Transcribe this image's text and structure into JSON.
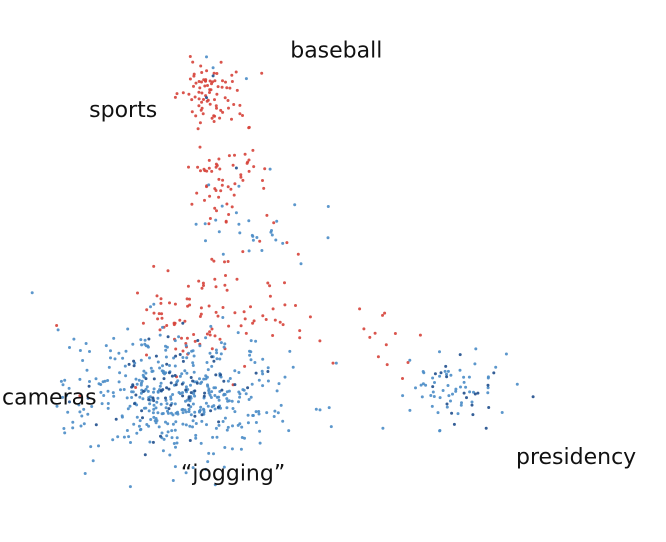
{
  "chart_data": {
    "type": "scatter",
    "title": "",
    "xlabel": "",
    "ylabel": "",
    "grid": false,
    "legend": "none",
    "axes_visible": false,
    "xlim": [
      0,
      100
    ],
    "ylim": [
      0,
      100
    ],
    "colors": {
      "red": "#d6433a",
      "blue": "#4a8cc7",
      "dark_blue": "#1f4e8c"
    },
    "labels": [
      {
        "id": "baseball",
        "text": "baseball",
        "x": 50.5,
        "y": 90.5
      },
      {
        "id": "sports",
        "text": "sports",
        "x": 18.5,
        "y": 79.5
      },
      {
        "id": "cameras",
        "text": "cameras",
        "x": 7.4,
        "y": 26.5
      },
      {
        "id": "jogging",
        "text": "“jogging”",
        "x": 35.0,
        "y": 12.5
      },
      {
        "id": "presidency",
        "text": "presidency",
        "x": 86.5,
        "y": 15.5
      }
    ],
    "series": [
      {
        "color": "red",
        "clusters": [
          {
            "cx": 31.5,
            "cy": 83.0,
            "sx": 2.2,
            "sy": 2.8,
            "n": 75
          },
          {
            "cx": 34.0,
            "cy": 68.0,
            "sx": 3.0,
            "sy": 6.5,
            "n": 70
          },
          {
            "cx": 32.0,
            "cy": 42.0,
            "sx": 6.0,
            "sy": 5.0,
            "n": 95
          },
          {
            "cx": 60.0,
            "cy": 38.0,
            "sx": 3.5,
            "sy": 3.5,
            "n": 12
          }
        ],
        "points": [
          [
            39.0,
            55.5
          ],
          [
            26.5,
            30.5
          ],
          [
            28.0,
            36.0
          ],
          [
            22.0,
            34.5
          ],
          [
            12.0,
            27.0
          ],
          [
            35.0,
            29.0
          ],
          [
            41.0,
            43.0
          ],
          [
            45.0,
            39.0
          ],
          [
            50.0,
            33.0
          ],
          [
            54.0,
            43.0
          ]
        ]
      },
      {
        "color": "blue",
        "clusters": [
          {
            "cx": 27.0,
            "cy": 27.0,
            "sx": 7.5,
            "sy": 6.0,
            "n": 420
          },
          {
            "cx": 37.0,
            "cy": 58.0,
            "sx": 5.5,
            "sy": 4.5,
            "n": 30
          },
          {
            "cx": 68.0,
            "cy": 29.0,
            "sx": 4.5,
            "sy": 3.5,
            "n": 55
          }
        ],
        "points": [
          [
            31.0,
            89.5
          ],
          [
            32.0,
            87.5
          ],
          [
            37.0,
            85.5
          ],
          [
            12.0,
            30.0
          ],
          [
            12.0,
            24.0
          ],
          [
            14.0,
            15.0
          ],
          [
            47.5,
            24.5
          ],
          [
            50.5,
            33.0
          ],
          [
            57.5,
            21.0
          ],
          [
            66.0,
            20.5
          ]
        ]
      },
      {
        "color": "dark_blue",
        "clusters": [
          {
            "cx": 26.5,
            "cy": 29.0,
            "sx": 6.0,
            "sy": 4.5,
            "n": 75
          },
          {
            "cx": 69.0,
            "cy": 28.5,
            "sx": 3.8,
            "sy": 3.0,
            "n": 18
          }
        ],
        "points": [
          [
            32.0,
            86.0
          ],
          [
            31.0,
            82.0
          ],
          [
            35.5,
            69.0
          ],
          [
            71.0,
            23.5
          ],
          [
            73.0,
            21.0
          ]
        ]
      }
    ]
  }
}
